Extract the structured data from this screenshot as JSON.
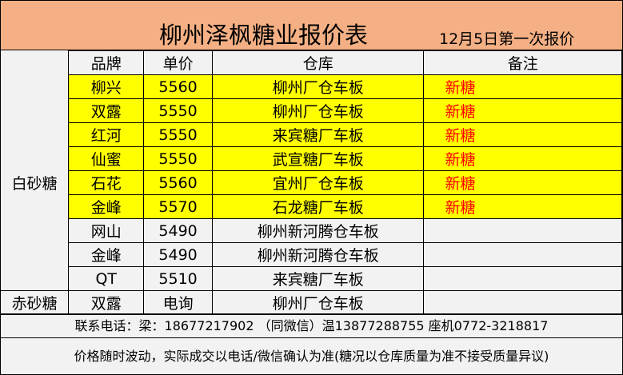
{
  "title": "柳州泽枫糖业报价表",
  "subtitle": "12月5日第一次报价",
  "headers": {
    "brand": "品牌",
    "price": "单价",
    "warehouse": "仓库",
    "note": "备注"
  },
  "categories": {
    "white": "白砂糖",
    "brown": "赤砂糖"
  },
  "rows": [
    {
      "brand": "柳兴",
      "price": "5560",
      "warehouse": "柳州厂仓车板",
      "note": "新糖"
    },
    {
      "brand": "双露",
      "price": "5550",
      "warehouse": "柳州厂仓车板",
      "note": "新糖"
    },
    {
      "brand": "红河",
      "price": "5550",
      "warehouse": "来宾糖厂车板",
      "note": "新糖"
    },
    {
      "brand": "仙蜜",
      "price": "5550",
      "warehouse": "武宣糖厂车板",
      "note": "新糖"
    },
    {
      "brand": "石花",
      "price": "5560",
      "warehouse": "宜州厂仓车板",
      "note": "新糖"
    },
    {
      "brand": "金峰",
      "price": "5570",
      "warehouse": "石龙糖厂车板",
      "note": "新糖"
    },
    {
      "brand": "网山",
      "price": "5490",
      "warehouse": "柳州新河腾仓车板",
      "note": ""
    },
    {
      "brand": "金峰",
      "price": "5490",
      "warehouse": "柳州新河腾仓车板",
      "note": ""
    },
    {
      "brand": "QT",
      "price": "5510",
      "warehouse": "来宾糖厂车板",
      "note": ""
    },
    {
      "brand": "双露",
      "price": "电询",
      "warehouse": "柳州厂仓车板",
      "note": ""
    }
  ],
  "contact": "联系电话：梁：18677217902 （同微信）温13877288755 座机0772-3218817",
  "disclaimer": "价格随时波动，实际成交以电话/微信确认为准(糖况以仓库质量为准不接受质量异议)",
  "colors": {
    "title_bg": "#f4b084",
    "highlight": "#ffff00",
    "note_text": "#ff0000"
  }
}
